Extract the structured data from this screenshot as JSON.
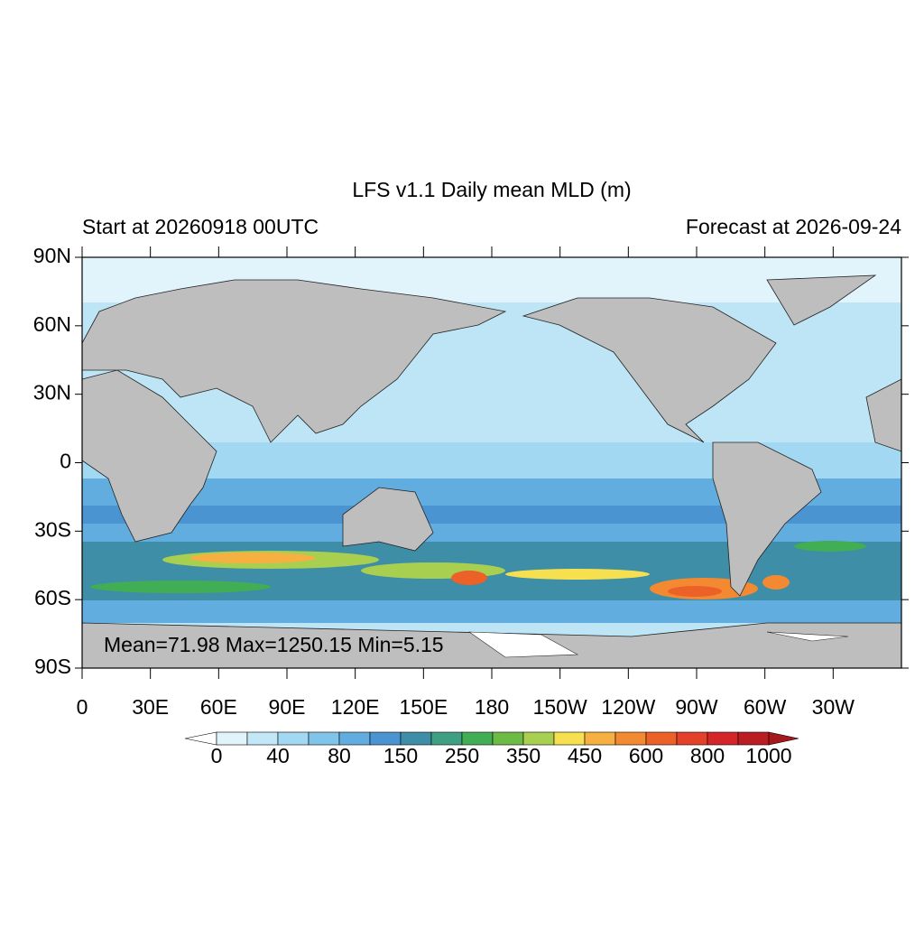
{
  "title": "LFS v1.1 Daily mean MLD (m)",
  "subtitle_left": "Start at 20260918 00UTC",
  "subtitle_right": "Forecast at 2026-09-24",
  "lat_labels": [
    "90N",
    "60N",
    "30N",
    "0",
    "30S",
    "60S",
    "90S"
  ],
  "lon_labels": [
    "0",
    "30E",
    "60E",
    "90E",
    "120E",
    "150E",
    "180",
    "150W",
    "120W",
    "90W",
    "60W",
    "30W"
  ],
  "stats": "Mean=71.98  Max=1250.15  Min=5.15",
  "colorbar": {
    "levels": [
      0,
      40,
      80,
      150,
      250,
      350,
      450,
      600,
      800,
      1000
    ],
    "under_color": "#ffffff",
    "over_color": "#a5191d",
    "colors": [
      "#e2f4fb",
      "#c2e7f7",
      "#a2d8f1",
      "#80c5e9",
      "#62addf",
      "#4a95d1",
      "#3d8ea6",
      "#3f9f82",
      "#41ad55",
      "#6dbb45",
      "#a9cf50",
      "#f6e04f",
      "#f6b042",
      "#f38a32",
      "#ec6127",
      "#e4412a",
      "#d42628",
      "#bb1e22"
    ]
  }
}
